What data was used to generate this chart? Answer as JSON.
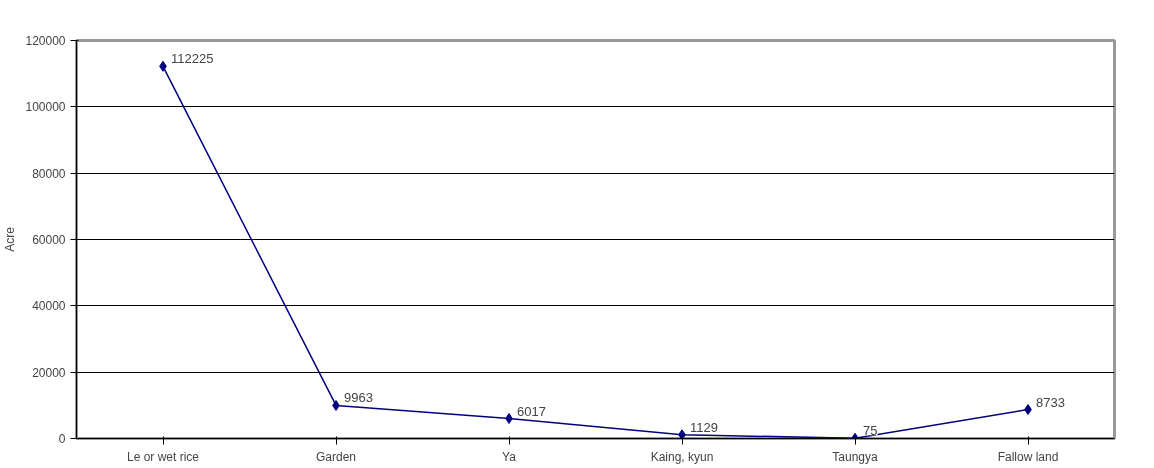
{
  "chart_data": {
    "type": "line",
    "ylabel": "Acre",
    "categories": [
      "Le or wet rice",
      "Garden",
      "Ya",
      "Kaing, kyun",
      "Taungya",
      "Fallow land"
    ],
    "series": [
      {
        "color": "#000080",
        "values": [
          112225,
          9963,
          6017,
          1129,
          75,
          8733
        ]
      }
    ],
    "ylim": [
      0,
      120000
    ],
    "yticks": [
      0,
      20000,
      40000,
      60000,
      80000,
      100000,
      120000
    ],
    "grid": "y",
    "marker": "diamond",
    "data_labels": true
  }
}
